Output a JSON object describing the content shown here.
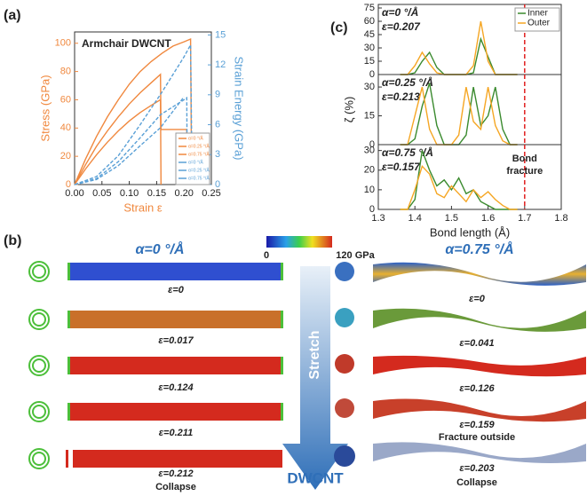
{
  "chart_data": [
    {
      "type": "line",
      "panel": "(a)",
      "title": "Armchair  DWCNT",
      "xlabel": "Strain ε",
      "ylabel": "Stress (GPa)",
      "y2label": "Strain Energy (GPa)",
      "xlim": [
        0,
        0.25
      ],
      "xticks": [
        {
          "value": 0,
          "label": "0.00"
        },
        0.05,
        {
          "value": 0.1,
          "label": "0.10"
        },
        0.15,
        {
          "value": 0.2,
          "label": "0.20"
        },
        0.25
      ],
      "ylim": [
        0,
        108
      ],
      "yticks": [
        0,
        20,
        40,
        60,
        80,
        100
      ],
      "y2lim": [
        0,
        15.3
      ],
      "y2ticks": [
        0,
        3,
        6,
        9,
        12,
        15
      ],
      "series": [
        {
          "name": "α=0 °/Å",
          "color": "#f0883e",
          "x": [
            0,
            0.02,
            0.04,
            0.06,
            0.08,
            0.1,
            0.12,
            0.14,
            0.16,
            0.18,
            0.2,
            0.212,
            0.214
          ],
          "values": [
            0,
            18,
            34,
            48,
            60,
            71,
            80,
            87,
            93,
            98,
            101,
            103,
            0
          ]
        },
        {
          "name": "α=0.25 °/Å",
          "color": "#f0883e",
          "x": [
            0,
            0.02,
            0.04,
            0.06,
            0.08,
            0.1,
            0.12,
            0.14,
            0.157,
            0.158,
            0.205,
            0.206
          ],
          "values": [
            0,
            14,
            27,
            38,
            48,
            57,
            65,
            72,
            78,
            39,
            39,
            0
          ]
        },
        {
          "name": "α=0.75 °/Å",
          "color": "#f0883e",
          "x": [
            0,
            0.02,
            0.04,
            0.06,
            0.08,
            0.1,
            0.12,
            0.14,
            0.157,
            0.158
          ],
          "values": [
            0,
            11,
            21,
            30,
            38,
            45,
            51,
            56,
            60,
            0
          ]
        },
        {
          "name": "α=0 °/Å",
          "color": "#5aa0d6",
          "axis": "y2",
          "linestyle": "dashed",
          "x": [
            0,
            0.04,
            0.08,
            0.12,
            0.16,
            0.2,
            0.212,
            0.215
          ],
          "values": [
            0,
            0.8,
            2.9,
            6,
            9.3,
            12.8,
            14,
            0
          ]
        },
        {
          "name": "α=0.25 °/Å",
          "color": "#5aa0d6",
          "axis": "y2",
          "linestyle": "dashed",
          "x": [
            0,
            0.04,
            0.08,
            0.12,
            0.157,
            0.2,
            0.205,
            0.206
          ],
          "values": [
            0,
            0.6,
            2.3,
            4.7,
            7,
            8.5,
            8.7,
            0
          ]
        },
        {
          "name": "α=0.75 °/Å",
          "color": "#5aa0d6",
          "axis": "y2",
          "linestyle": "dashed",
          "x": [
            0,
            0.04,
            0.08,
            0.12,
            0.157,
            0.2
          ],
          "values": [
            0,
            0.5,
            1.9,
            3.9,
            5.7,
            8.8
          ]
        }
      ]
    },
    {
      "type": "line",
      "panel": "(c)",
      "annotations": [
        "α=0 °/Å",
        "ε=0.207"
      ],
      "xlim": [
        1.3,
        1.8
      ],
      "ylim": [
        0,
        79
      ],
      "yticks": [
        0,
        15,
        30,
        45,
        60,
        75
      ],
      "vline": 1.7,
      "x": [
        1.36,
        1.38,
        1.4,
        1.42,
        1.44,
        1.46,
        1.48,
        1.5,
        1.52,
        1.54,
        1.56,
        1.58,
        1.6,
        1.62,
        1.64,
        1.66,
        1.68
      ],
      "series": [
        {
          "name": "Inner",
          "color": "#3a8a2e",
          "values": [
            0,
            0,
            2,
            15,
            25,
            8,
            0,
            0,
            0,
            0,
            2,
            40,
            20,
            0,
            0,
            0,
            0
          ]
        },
        {
          "name": "Outer",
          "color": "#f5a623",
          "values": [
            0,
            0,
            10,
            25,
            12,
            2,
            0,
            0,
            0,
            0,
            10,
            60,
            15,
            0,
            0,
            0,
            0
          ]
        }
      ]
    },
    {
      "type": "line",
      "annotations": [
        "α=0.25 °/Å",
        "ε=0.213"
      ],
      "ylabel": "ζ (%)",
      "xlim": [
        1.3,
        1.8
      ],
      "ylim": [
        0,
        36.5
      ],
      "yticks": [
        0,
        15,
        30
      ],
      "vline": 1.7,
      "x": [
        1.36,
        1.38,
        1.4,
        1.42,
        1.44,
        1.46,
        1.48,
        1.5,
        1.52,
        1.54,
        1.56,
        1.58,
        1.6,
        1.62,
        1.64,
        1.66,
        1.68
      ],
      "series": [
        {
          "color": "#3a8a2e",
          "values": [
            0,
            0,
            3,
            20,
            32,
            10,
            0,
            0,
            0,
            5,
            30,
            10,
            15,
            30,
            8,
            0,
            0
          ]
        },
        {
          "color": "#f5a623",
          "values": [
            0,
            0,
            15,
            30,
            8,
            0,
            0,
            0,
            5,
            30,
            12,
            8,
            30,
            10,
            2,
            0,
            0
          ]
        }
      ]
    },
    {
      "type": "line",
      "annotations": [
        "α=0.75 °/Å",
        "ε=0.157"
      ],
      "vline_label": [
        "Bond",
        "fracture"
      ],
      "xlabel": "Bond length (Å)",
      "xlim": [
        1.3,
        1.8
      ],
      "xticks": [
        1.3,
        1.4,
        1.5,
        1.6,
        1.7,
        1.8
      ],
      "ylim": [
        0,
        33
      ],
      "yticks": [
        0,
        10,
        20,
        30
      ],
      "vline": 1.7,
      "x": [
        1.36,
        1.38,
        1.4,
        1.42,
        1.44,
        1.46,
        1.48,
        1.5,
        1.52,
        1.54,
        1.56,
        1.58,
        1.6,
        1.62,
        1.64,
        1.66,
        1.68
      ],
      "series": [
        {
          "color": "#3a8a2e",
          "values": [
            0,
            0,
            5,
            30,
            20,
            12,
            15,
            10,
            16,
            8,
            10,
            4,
            2,
            0,
            0,
            0,
            0
          ]
        },
        {
          "color": "#f5a623",
          "values": [
            0,
            0,
            10,
            22,
            18,
            8,
            6,
            12,
            8,
            4,
            10,
            6,
            9,
            5,
            2,
            0,
            0
          ]
        }
      ]
    }
  ],
  "panel_b": {
    "label": "(b)",
    "left_title": "α=0 °/Å",
    "right_title": "α=0.75 °/Å",
    "colorbar": [
      "0",
      "120 GPa"
    ],
    "left_strains": [
      "ε=0",
      "ε=0.017",
      "ε=0.124",
      "ε=0.211",
      "ε=0.212"
    ],
    "left_note": "Collapse",
    "right_strains": [
      "ε=0",
      "ε=0.041",
      "ε=0.126",
      "ε=0.159",
      "ε=0.203"
    ],
    "right_notes": [
      "Fracture outside",
      "Collapse"
    ],
    "arrow_label": "Stretch",
    "bottom_label": "DWCNT"
  }
}
